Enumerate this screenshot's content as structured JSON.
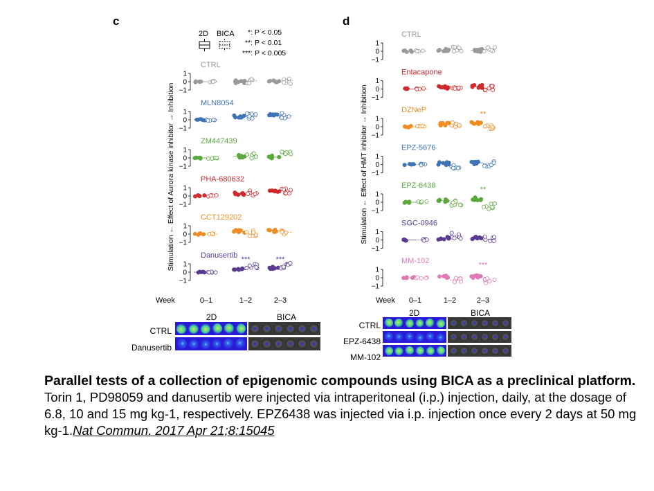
{
  "legend": {
    "box_2d": "2D",
    "box_bica": "BICA",
    "sig": [
      "*: P < 0.05",
      "**: P < 0.01",
      "***: P < 0.005"
    ]
  },
  "chart_data": [
    {
      "type": "scatter",
      "panel": "c",
      "ylabel": "Stimulation ← Effect of Aurora kinase inhibitor → Inhibition",
      "xlabel": "Week",
      "categories": [
        "0–1",
        "1–2",
        "2–3"
      ],
      "yticks": [
        "1",
        "0",
        "−1"
      ],
      "ylim": [
        -1,
        1
      ],
      "series": [
        {
          "name": "CTRL",
          "color": "#9a9a9a",
          "mean_2d": [
            0,
            0,
            0
          ],
          "mean_bica": [
            0,
            0.1,
            0.1
          ],
          "sig": [
            "",
            "",
            ""
          ]
        },
        {
          "name": "MLN8054",
          "color": "#3f74b6",
          "mean_2d": [
            0,
            0.4,
            0.5
          ],
          "mean_bica": [
            0,
            0.4,
            0.5
          ],
          "sig": [
            "",
            "",
            ""
          ]
        },
        {
          "name": "ZM447439",
          "color": "#5aa83b",
          "mean_2d": [
            0,
            0.2,
            0.1
          ],
          "mean_bica": [
            0,
            0.3,
            0.5
          ],
          "sig": [
            "",
            "",
            ""
          ]
        },
        {
          "name": "PHA-680632",
          "color": "#cf2a2e",
          "mean_2d": [
            0,
            0.3,
            0.6
          ],
          "mean_bica": [
            0,
            0.4,
            0.6
          ],
          "sig": [
            "",
            "",
            ""
          ]
        },
        {
          "name": "CCT129202",
          "color": "#f08c24",
          "mean_2d": [
            0,
            0.3,
            0.4
          ],
          "mean_bica": [
            0,
            0.1,
            0.2
          ],
          "sig": [
            "",
            "",
            ""
          ]
        },
        {
          "name": "Danusertib",
          "color": "#5a3b90",
          "mean_2d": [
            0,
            0.3,
            0.5
          ],
          "mean_bica": [
            0,
            0.7,
            0.8
          ],
          "sig": [
            "",
            "***",
            "***"
          ]
        }
      ]
    },
    {
      "type": "scatter",
      "panel": "d",
      "ylabel": "Stimulation ← Effect of HMT inhibitor → Inhibition",
      "xlabel": "Week",
      "categories": [
        "0–1",
        "1–2",
        "2–3"
      ],
      "yticks": [
        "1",
        "0",
        "−1"
      ],
      "ylim": [
        -1,
        1
      ],
      "series": [
        {
          "name": "CTRL",
          "color": "#9a9a9a",
          "mean_2d": [
            0,
            0.1,
            0.1
          ],
          "mean_bica": [
            0,
            0.3,
            0.2
          ],
          "sig": [
            "",
            "",
            ""
          ]
        },
        {
          "name": "Entacapone",
          "color": "#cf2a2e",
          "mean_2d": [
            0,
            0.2,
            0.3
          ],
          "mean_bica": [
            0,
            0.3,
            0.1
          ],
          "sig": [
            "",
            "",
            ""
          ]
        },
        {
          "name": "DZNeP",
          "color": "#f08c24",
          "mean_2d": [
            0,
            0.3,
            0.5
          ],
          "mean_bica": [
            0,
            0.3,
            -0.1
          ],
          "sig": [
            "",
            "",
            "**"
          ]
        },
        {
          "name": "EPZ-5676",
          "color": "#3f74b6",
          "mean_2d": [
            0,
            0.1,
            0.2
          ],
          "mean_bica": [
            0,
            -0.4,
            0.1
          ],
          "sig": [
            "",
            "",
            ""
          ]
        },
        {
          "name": "EPZ-6438",
          "color": "#5aa83b",
          "mean_2d": [
            0,
            0.2,
            0.4
          ],
          "mean_bica": [
            0,
            -0.1,
            -0.5
          ],
          "sig": [
            "",
            "",
            "**"
          ]
        },
        {
          "name": "SGC-0946",
          "color": "#5a3b90",
          "mean_2d": [
            0,
            0.2,
            0.2
          ],
          "mean_bica": [
            0,
            0.5,
            0.1
          ],
          "sig": [
            "",
            "",
            ""
          ]
        },
        {
          "name": "MM-102",
          "color": "#e07ab4",
          "mean_2d": [
            0,
            0.1,
            0.1
          ],
          "mean_bica": [
            0,
            -0.3,
            -0.4
          ],
          "sig": [
            "",
            "",
            "***"
          ]
        }
      ]
    }
  ],
  "images_c": {
    "head_2d": "2D",
    "head_bica": "BICA",
    "rows": [
      "CTRL",
      "Danusertib"
    ]
  },
  "images_d": {
    "head_2d": "2D",
    "head_bica": "BICA",
    "rows": [
      "CTRL",
      "EPZ-6438",
      "MM-102"
    ]
  },
  "caption": {
    "title": "Parallel tests of a collection of epigenomic compounds using BICA as a preclinical platform.",
    "body": "Torin 1, PD98059 and danusertib were injected via intraperitoneal (i.p.) injection, daily, at the dosage of 6.8, 10 and 15 mg kg-1, respectively. EPZ6438 was injected via i.p. injection once every 2 days at 50 mg kg-1.",
    "reference": "Nat Commun. 2017 Apr 21;8:15045"
  }
}
